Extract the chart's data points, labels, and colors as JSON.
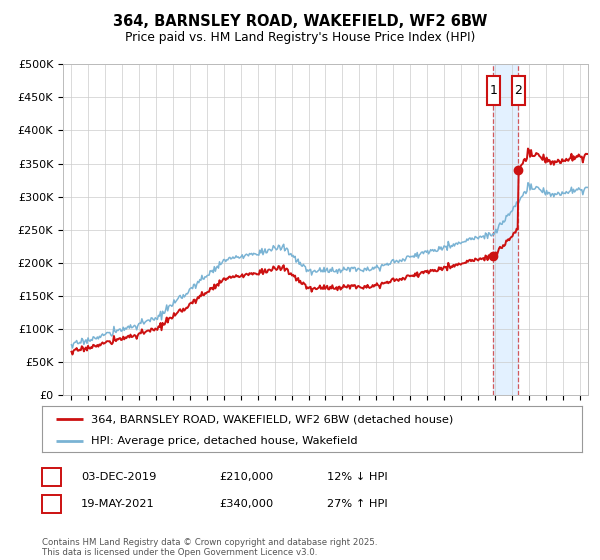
{
  "title_line1": "364, BARNSLEY ROAD, WAKEFIELD, WF2 6BW",
  "title_line2": "Price paid vs. HM Land Registry's House Price Index (HPI)",
  "ylim": [
    0,
    500000
  ],
  "yticks": [
    0,
    50000,
    100000,
    150000,
    200000,
    250000,
    300000,
    350000,
    400000,
    450000,
    500000
  ],
  "ytick_labels": [
    "£0",
    "£50K",
    "£100K",
    "£150K",
    "£200K",
    "£250K",
    "£300K",
    "£350K",
    "£400K",
    "£450K",
    "£500K"
  ],
  "xlim_start": 1994.5,
  "xlim_end": 2025.5,
  "hpi_color": "#7ab3d4",
  "price_color": "#cc1111",
  "legend_label1": "364, BARNSLEY ROAD, WAKEFIELD, WF2 6BW (detached house)",
  "legend_label2": "HPI: Average price, detached house, Wakefield",
  "annotation1_date": "03-DEC-2019",
  "annotation1_price": "£210,000",
  "annotation1_change": "12% ↓ HPI",
  "annotation2_date": "19-MAY-2021",
  "annotation2_price": "£340,000",
  "annotation2_change": "27% ↑ HPI",
  "footnote": "Contains HM Land Registry data © Crown copyright and database right 2025.\nThis data is licensed under the Open Government Licence v3.0.",
  "sale1_year": 2019.92,
  "sale1_price": 210000,
  "sale2_year": 2021.38,
  "sale2_price": 340000,
  "highlight_start": 2019.92,
  "highlight_end": 2021.38,
  "background_color": "#ffffff"
}
